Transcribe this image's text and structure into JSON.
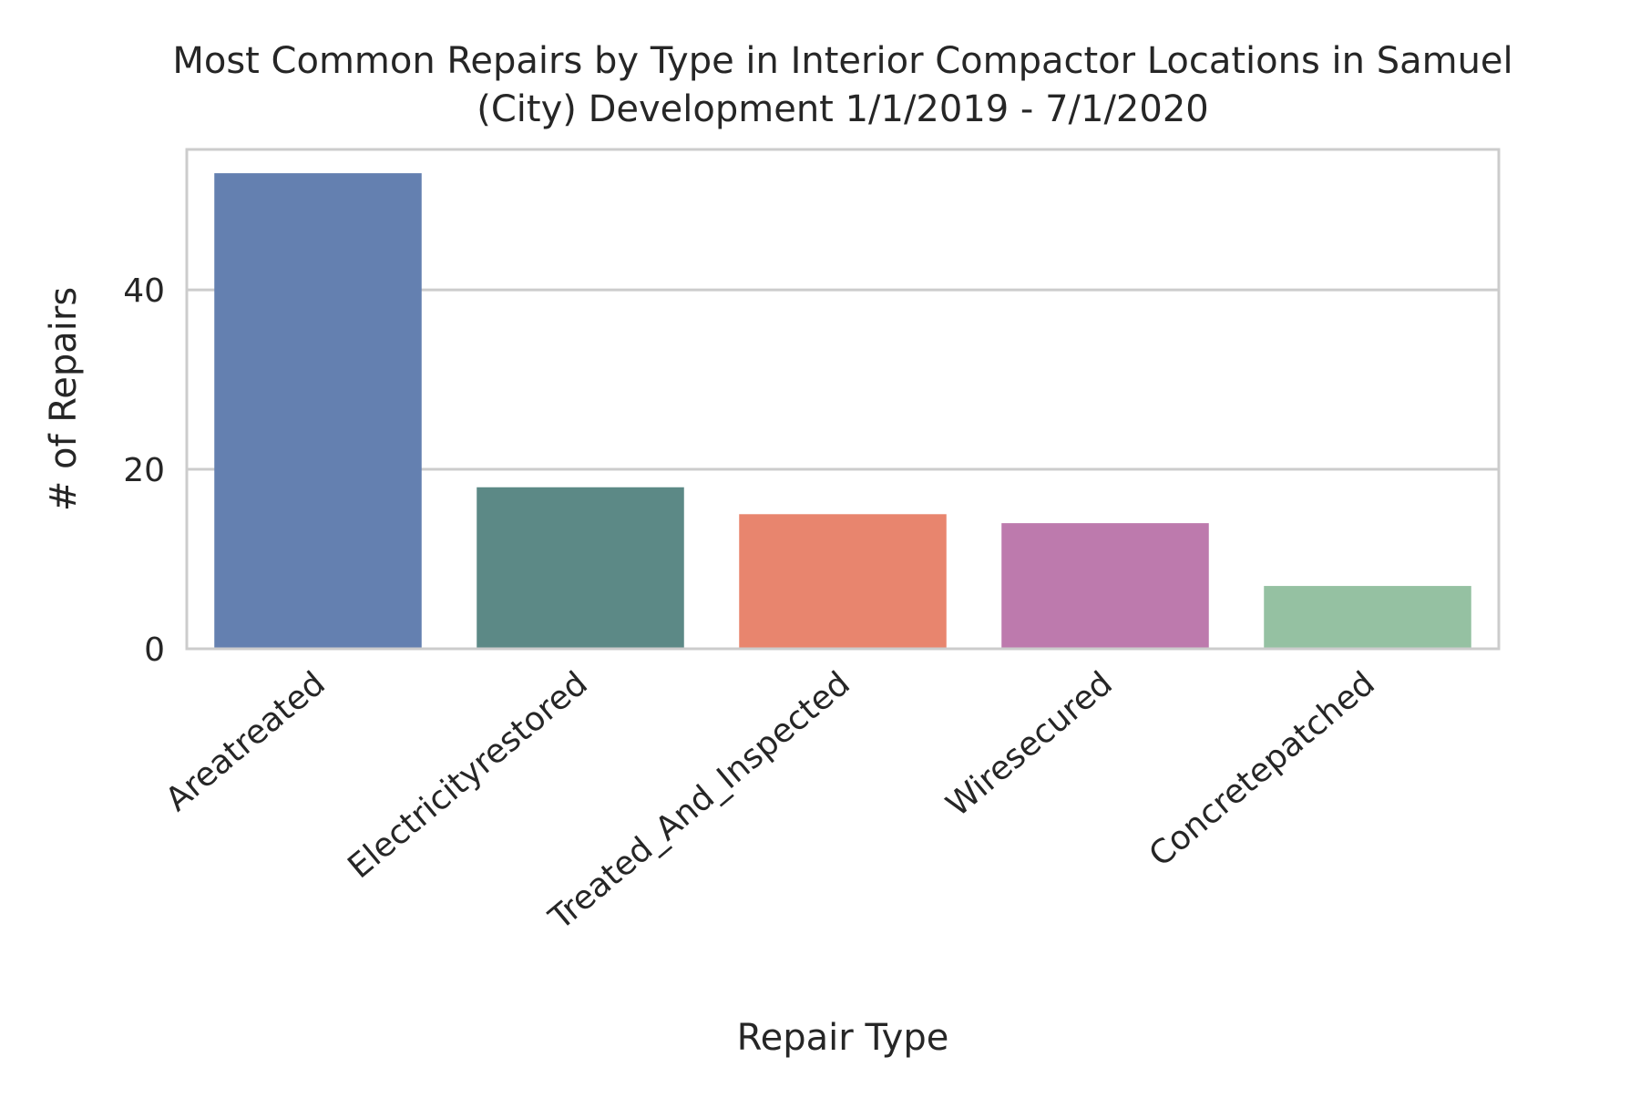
{
  "chart_data": {
    "type": "bar",
    "title": "Most Common Repairs by Type in Interior Compactor Locations in Samuel (City) Development 1/1/2019 - 7/1/2020",
    "title_lines": [
      "Most Common Repairs by Type in Interior Compactor Locations in Samuel",
      "(City) Development 1/1/2019 - 7/1/2020"
    ],
    "xlabel": "Repair Type",
    "ylabel": "# of Repairs",
    "categories": [
      "Areatreated",
      "Electricityrestored",
      "Treated_And_Inspected",
      "Wiresecured",
      "Concretepatched"
    ],
    "values": [
      53,
      18,
      15,
      14,
      7
    ],
    "colors": [
      "#6480b0",
      "#5c8986",
      "#e8856e",
      "#bd7aad",
      "#95c1a2"
    ],
    "ylim": [
      0,
      55.65
    ],
    "yticks": [
      0,
      20,
      40
    ],
    "grid": "horizontal",
    "legend": "none"
  }
}
